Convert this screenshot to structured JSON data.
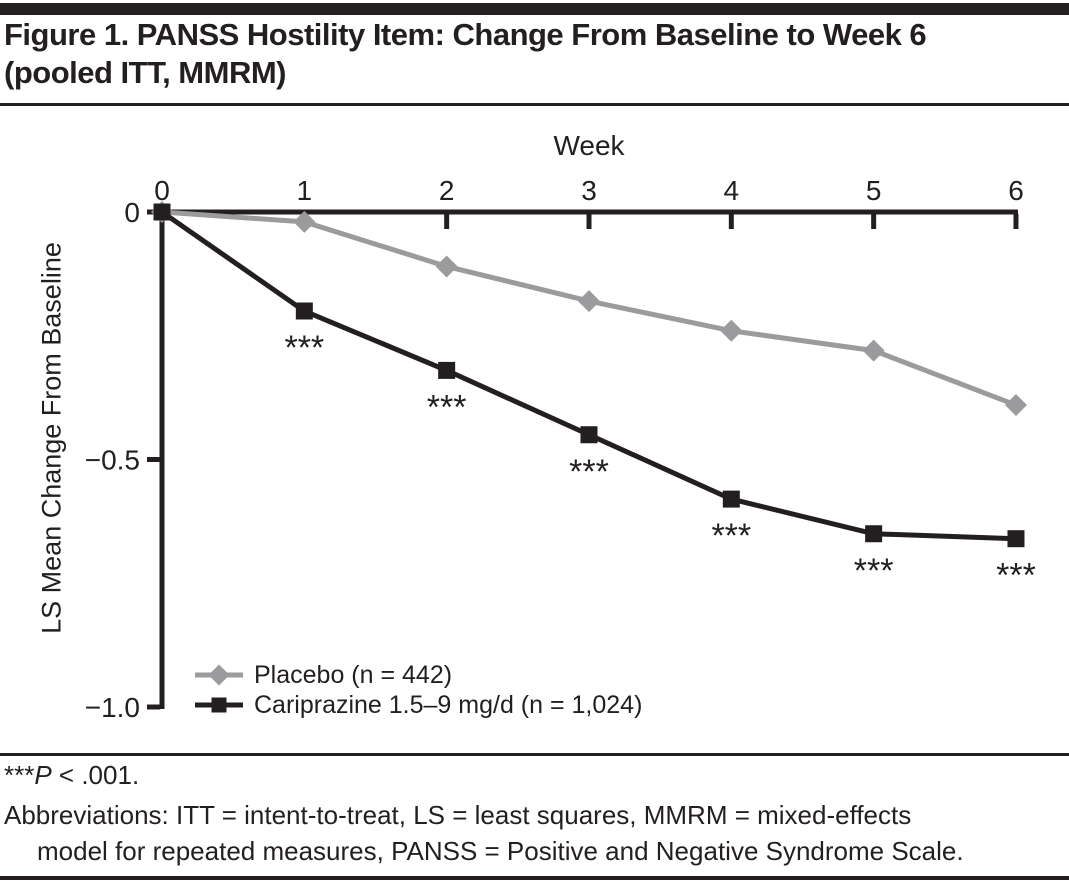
{
  "figure": {
    "title_line1": "Figure 1. PANSS Hostility Item: Change From Baseline to Week 6",
    "title_line2": "(pooled ITT, MMRM)"
  },
  "chart_data": {
    "type": "line",
    "x": [
      0,
      1,
      2,
      3,
      4,
      5,
      6
    ],
    "x_tick_labels": [
      "0",
      "1",
      "2",
      "3",
      "4",
      "5",
      "6"
    ],
    "xlabel": "Week",
    "ylabel": "LS Mean Change From Baseline",
    "ylim": [
      -1.0,
      0
    ],
    "y_ticks": [
      0,
      -0.5,
      -1.0
    ],
    "y_tick_labels": [
      "0",
      "−0.5",
      "−1.0"
    ],
    "grid": false,
    "legend_position": "inside-bottom-left",
    "series": [
      {
        "name": "Placebo",
        "label": "Placebo (n = 442)",
        "marker": "diamond",
        "color": "#9b9b9d",
        "values": [
          0,
          -0.02,
          -0.11,
          -0.18,
          -0.24,
          -0.28,
          -0.39
        ]
      },
      {
        "name": "Cariprazine",
        "label": "Cariprazine 1.5–9 mg/d (n = 1,024)",
        "marker": "square",
        "color": "#231f20",
        "values": [
          0,
          -0.2,
          -0.32,
          -0.45,
          -0.58,
          -0.65,
          -0.66
        ]
      }
    ],
    "annotations": {
      "text": "***",
      "series": "Cariprazine",
      "weeks": [
        1,
        2,
        3,
        4,
        5,
        6
      ]
    }
  },
  "footnotes": {
    "sig_stars": "***",
    "sig_p": "P",
    "sig_rest": " < .001.",
    "abbr_line1": "Abbreviations: ITT = intent-to-treat, LS = least squares, MMRM = mixed-effects",
    "abbr_line2": "model for repeated measures, PANSS = Positive and Negative Syndrome Scale."
  },
  "colors": {
    "ink": "#231f20",
    "gray_series": "#9b9b9d"
  }
}
